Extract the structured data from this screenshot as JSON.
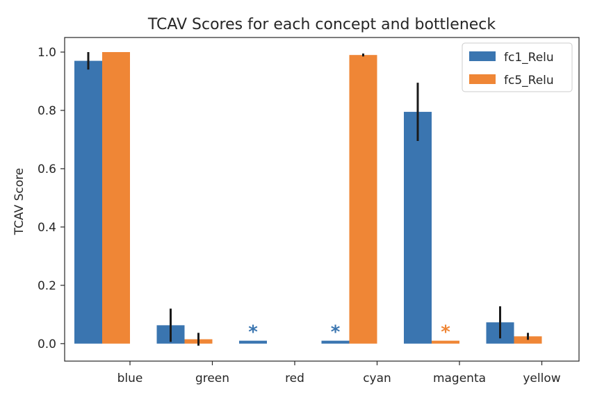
{
  "chart_data": {
    "type": "bar",
    "title": "TCAV Scores for each concept and bottleneck",
    "xlabel": "",
    "ylabel": "TCAV Score",
    "categories": [
      "blue",
      "green",
      "red",
      "cyan",
      "magenta",
      "yellow"
    ],
    "ylim": [
      -0.06,
      1.05
    ],
    "yticks": [
      "0.0",
      "0.2",
      "0.4",
      "0.6",
      "0.8",
      "1.0"
    ],
    "grid": false,
    "legend_position": "top-right",
    "series": [
      {
        "name": "fc1_Relu",
        "color": "#3a75b0",
        "values": [
          0.97,
          0.063,
          0.01,
          0.01,
          0.795,
          0.073
        ],
        "errors": [
          0.03,
          0.057,
          0,
          0,
          0.1,
          0.055
        ],
        "star_marker": [
          false,
          false,
          true,
          true,
          false,
          false
        ]
      },
      {
        "name": "fc5_Relu",
        "color": "#ef8636",
        "values": [
          1.0,
          0.015,
          0.0,
          0.99,
          0.01,
          0.025
        ],
        "errors": [
          0,
          0.022,
          0,
          0.005,
          0,
          0.012
        ],
        "star_marker": [
          false,
          false,
          false,
          false,
          true,
          false
        ]
      }
    ],
    "star_symbol": "*"
  }
}
